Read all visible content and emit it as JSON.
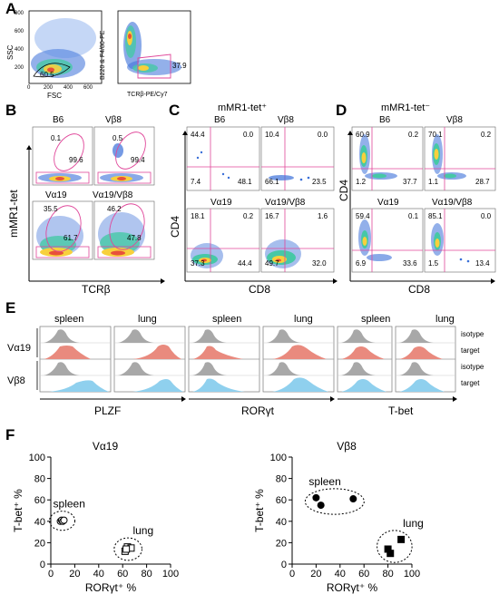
{
  "panels": {
    "A": {
      "letter": "A",
      "plot1": {
        "ylabel": "SSC",
        "xlabel": "FSC",
        "gate_value": "60.5",
        "yticks": [
          "800",
          "600",
          "400",
          "200"
        ],
        "xticks": [
          "0",
          "200",
          "400",
          "600"
        ]
      },
      "plot2": {
        "ylabel": "B220 & F4/80-PE",
        "xlabel": "TCRβ-PE/Cy7",
        "gate_value": "37.9"
      }
    },
    "B": {
      "letter": "B",
      "ylabel": "mMR1-tet",
      "xlabel": "TCRβ",
      "plots": [
        {
          "title": "B6",
          "top": "0.1",
          "gate": "99.6"
        },
        {
          "title": "Vβ8",
          "top": "0.5",
          "gate": "99.4"
        },
        {
          "title": "Vα19",
          "top": "35.5",
          "gate": "61.7"
        },
        {
          "title": "Vα19/Vβ8",
          "top": "46.2",
          "gate": "47.8"
        }
      ]
    },
    "C": {
      "letter": "C",
      "header": "mMR1-tet⁺",
      "ylabel": "CD4",
      "xlabel": "CD8",
      "plots": [
        {
          "title": "B6",
          "q": [
            "44.4",
            "0.0",
            "7.4",
            "48.1"
          ]
        },
        {
          "title": "Vβ8",
          "q": [
            "10.4",
            "0.0",
            "66.1",
            "23.5"
          ]
        },
        {
          "title": "Vα19",
          "q": [
            "18.1",
            "0.2",
            "37.3",
            "44.4"
          ]
        },
        {
          "title": "Vα19/Vβ8",
          "q": [
            "16.7",
            "1.6",
            "49.7",
            "32.0"
          ]
        }
      ]
    },
    "D": {
      "letter": "D",
      "header": "mMR1-tet⁻",
      "ylabel": "CD4",
      "xlabel": "CD8",
      "plots": [
        {
          "title": "B6",
          "q": [
            "60.9",
            "0.2",
            "1.2",
            "37.7"
          ]
        },
        {
          "title": "Vβ8",
          "q": [
            "70.1",
            "0.2",
            "1.1",
            "28.7"
          ]
        },
        {
          "title": "Vα19",
          "q": [
            "59.4",
            "0.1",
            "6.9",
            "33.6"
          ]
        },
        {
          "title": "Vα19/Vβ8",
          "q": [
            "85.1",
            "0.0",
            "1.5",
            "13.4"
          ]
        }
      ]
    },
    "E": {
      "letter": "E",
      "cols": [
        "spleen",
        "lung",
        "spleen",
        "lung",
        "spleen",
        "lung"
      ],
      "rows": [
        "Vα19",
        "Vβ8"
      ],
      "row_labels": [
        "isotype",
        "target",
        "isotype",
        "target"
      ],
      "markers": [
        "PLZF",
        "RORγt",
        "T-bet"
      ]
    },
    "F": {
      "letter": "F"
    }
  },
  "colors": {
    "target_red": "#e98a7e",
    "target_blue": "#8fd0ee",
    "isotype": "#a8a8a8",
    "gate": "#e0479a"
  },
  "chart_data": [
    {
      "type": "scatter",
      "title": "Vα19",
      "xlabel": "RORγt⁺ %",
      "ylabel": "T-bet⁺ %",
      "xlim": [
        0,
        100
      ],
      "ylim": [
        0,
        100
      ],
      "xticks": [
        "0",
        "20",
        "40",
        "60",
        "80",
        "100"
      ],
      "yticks": [
        "0",
        "20",
        "40",
        "60",
        "80",
        "100"
      ],
      "series": [
        {
          "name": "spleen",
          "marker": "open-circle",
          "points": [
            [
              8,
              40
            ],
            [
              9,
              41
            ],
            [
              10,
              40
            ],
            [
              11,
              41
            ]
          ]
        },
        {
          "name": "lung",
          "marker": "open-square",
          "points": [
            [
              62,
              12
            ],
            [
              64,
              16
            ],
            [
              67,
              15
            ],
            [
              63,
              14
            ]
          ]
        }
      ]
    },
    {
      "type": "scatter",
      "title": "Vβ8",
      "xlabel": "RORγt⁺ %",
      "ylabel": "T-bet⁺ %",
      "xlim": [
        0,
        100
      ],
      "ylim": [
        0,
        100
      ],
      "xticks": [
        "0",
        "20",
        "40",
        "60",
        "80",
        "100"
      ],
      "yticks": [
        "0",
        "20",
        "40",
        "60",
        "80",
        "100"
      ],
      "series": [
        {
          "name": "spleen",
          "marker": "filled-circle",
          "points": [
            [
              20,
              62
            ],
            [
              24,
              55
            ],
            [
              51,
              61
            ]
          ]
        },
        {
          "name": "lung",
          "marker": "filled-square",
          "points": [
            [
              80,
              14
            ],
            [
              82,
              10
            ],
            [
              91,
              23
            ]
          ]
        }
      ]
    }
  ]
}
